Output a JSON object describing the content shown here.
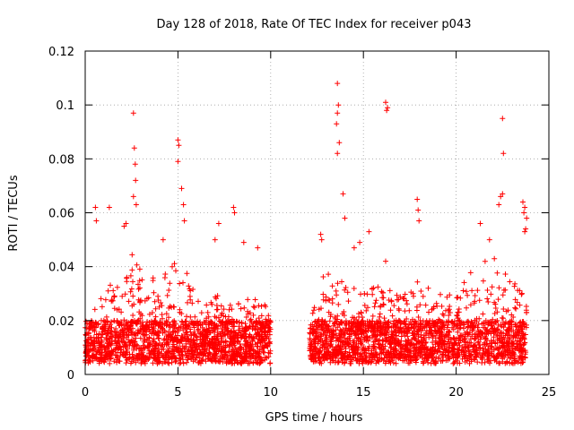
{
  "chart_data": {
    "type": "scatter",
    "title": "Day 128 of 2018, Rate Of TEC Index for receiver p043",
    "xlabel": "GPS time / hours",
    "ylabel": "ROTI / TECUs",
    "xlim": [
      0,
      25
    ],
    "ylim": [
      0,
      0.12
    ],
    "x_ticks": [
      0,
      5,
      10,
      15,
      20,
      25
    ],
    "y_ticks": [
      0,
      0.02,
      0.04,
      0.06,
      0.08,
      0.1,
      0.12
    ],
    "x_tick_labels": [
      "0",
      "5",
      "10",
      "15",
      "20",
      "25"
    ],
    "y_tick_labels": [
      "0",
      "0.02",
      "0.04",
      "0.06",
      "0.08",
      "0.1",
      "0.12"
    ],
    "grid": true,
    "marker": "+",
    "color": "#ff0000",
    "series": [
      {
        "name": "ROTI",
        "segments": [
          {
            "x_range": [
              0.0,
              10.0
            ],
            "baseline_range": [
              0.004,
              0.02
            ],
            "peak_envelope": [
              [
                0,
                0.02
              ],
              [
                1,
                0.03
              ],
              [
                2,
                0.04
              ],
              [
                2.6,
                0.045
              ],
              [
                3.5,
                0.035
              ],
              [
                4.5,
                0.04
              ],
              [
                5,
                0.045
              ],
              [
                6,
                0.03
              ],
              [
                7,
                0.03
              ],
              [
                8,
                0.025
              ],
              [
                9,
                0.03
              ],
              [
                10,
                0.025
              ]
            ]
          },
          {
            "x_range": [
              12.1,
              23.8
            ],
            "baseline_range": [
              0.004,
              0.02
            ],
            "peak_envelope": [
              [
                12.1,
                0.02
              ],
              [
                13,
                0.04
              ],
              [
                14,
                0.035
              ],
              [
                15,
                0.03
              ],
              [
                16,
                0.035
              ],
              [
                17,
                0.03
              ],
              [
                18,
                0.035
              ],
              [
                19,
                0.03
              ],
              [
                20,
                0.03
              ],
              [
                21,
                0.04
              ],
              [
                22,
                0.045
              ],
              [
                23,
                0.035
              ],
              [
                23.8,
                0.03
              ]
            ]
          }
        ],
        "outliers": [
          [
            0.55,
            0.062
          ],
          [
            0.6,
            0.057
          ],
          [
            1.3,
            0.062
          ],
          [
            2.1,
            0.055
          ],
          [
            2.2,
            0.056
          ],
          [
            2.6,
            0.097
          ],
          [
            2.65,
            0.084
          ],
          [
            2.7,
            0.078
          ],
          [
            2.72,
            0.072
          ],
          [
            2.6,
            0.066
          ],
          [
            2.75,
            0.063
          ],
          [
            4.2,
            0.05
          ],
          [
            5.0,
            0.087
          ],
          [
            5.05,
            0.085
          ],
          [
            5.0,
            0.079
          ],
          [
            5.2,
            0.069
          ],
          [
            5.3,
            0.063
          ],
          [
            5.35,
            0.057
          ],
          [
            7.0,
            0.05
          ],
          [
            7.2,
            0.056
          ],
          [
            8.0,
            0.062
          ],
          [
            8.05,
            0.06
          ],
          [
            8.55,
            0.049
          ],
          [
            9.3,
            0.047
          ],
          [
            12.7,
            0.052
          ],
          [
            12.75,
            0.05
          ],
          [
            13.6,
            0.108
          ],
          [
            13.65,
            0.1
          ],
          [
            13.6,
            0.097
          ],
          [
            13.55,
            0.093
          ],
          [
            13.7,
            0.086
          ],
          [
            13.6,
            0.082
          ],
          [
            13.9,
            0.067
          ],
          [
            14.0,
            0.058
          ],
          [
            14.5,
            0.047
          ],
          [
            14.8,
            0.049
          ],
          [
            15.3,
            0.053
          ],
          [
            16.2,
            0.101
          ],
          [
            16.3,
            0.099
          ],
          [
            16.25,
            0.098
          ],
          [
            16.2,
            0.042
          ],
          [
            17.9,
            0.065
          ],
          [
            17.95,
            0.061
          ],
          [
            18.0,
            0.057
          ],
          [
            21.3,
            0.056
          ],
          [
            21.8,
            0.05
          ],
          [
            22.5,
            0.095
          ],
          [
            22.55,
            0.082
          ],
          [
            22.5,
            0.067
          ],
          [
            22.4,
            0.066
          ],
          [
            22.3,
            0.063
          ],
          [
            23.6,
            0.064
          ],
          [
            23.7,
            0.062
          ],
          [
            23.65,
            0.06
          ],
          [
            23.8,
            0.058
          ],
          [
            23.75,
            0.054
          ],
          [
            23.7,
            0.053
          ]
        ]
      }
    ]
  }
}
